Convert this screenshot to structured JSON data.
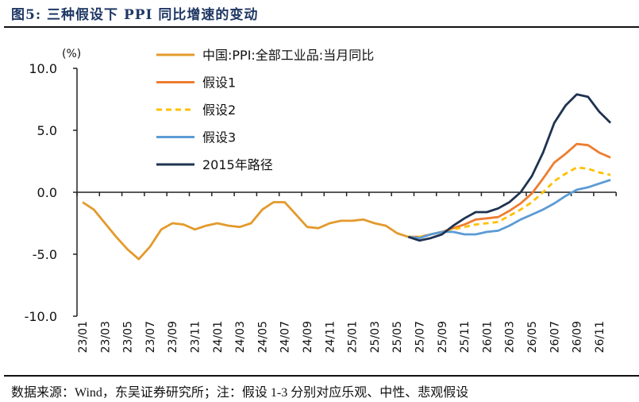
{
  "title": "图5:  三种假设下 PPI 同比增速的变动",
  "source": "数据来源：Wind，东吴证券研究所；注：假设 1-3 分别对应乐观、中性、悲观假设",
  "chart_data": {
    "type": "line",
    "title": "",
    "ylabel": "(%)",
    "xlabel": "",
    "ylim": [
      -10,
      10
    ],
    "yticks": [
      "10.0",
      "5.0",
      "0.0",
      "-5.0",
      "-10.0"
    ],
    "ytick_values": [
      10,
      5,
      0,
      -5,
      -10
    ],
    "grid": false,
    "legend_position": "top-center",
    "x": [
      "23/01",
      "23/02",
      "23/03",
      "23/04",
      "23/05",
      "23/06",
      "23/07",
      "23/08",
      "23/09",
      "23/10",
      "23/11",
      "23/12",
      "24/01",
      "24/02",
      "24/03",
      "24/04",
      "24/05",
      "24/06",
      "24/07",
      "24/08",
      "24/09",
      "24/10",
      "24/11",
      "24/12",
      "25/01",
      "25/02",
      "25/03",
      "25/04",
      "25/05",
      "25/06",
      "25/07",
      "25/08",
      "25/09",
      "25/10",
      "25/11",
      "25/12",
      "26/01",
      "26/02",
      "26/03",
      "26/04",
      "26/05",
      "26/06",
      "26/07",
      "26/08",
      "26/09",
      "26/10",
      "26/11",
      "26/12"
    ],
    "xtick_labels": [
      "23/01",
      "23/03",
      "23/05",
      "23/07",
      "23/09",
      "23/11",
      "24/01",
      "24/03",
      "24/05",
      "24/07",
      "24/09",
      "24/11",
      "25/01",
      "25/03",
      "25/05",
      "25/07",
      "25/09",
      "25/11",
      "26/01",
      "26/03",
      "26/05",
      "26/07",
      "26/09",
      "26/11"
    ],
    "series": [
      {
        "name": "中国:PPI:全部工业品:当月同比",
        "color": "#E39A2C",
        "dash": false,
        "values": [
          -0.8,
          -1.4,
          -2.5,
          -3.6,
          -4.6,
          -5.4,
          -4.4,
          -3.0,
          -2.5,
          -2.6,
          -3.0,
          -2.7,
          -2.5,
          -2.7,
          -2.8,
          -2.5,
          -1.4,
          -0.8,
          -0.8,
          -1.8,
          -2.8,
          -2.9,
          -2.5,
          -2.3,
          -2.3,
          -2.2,
          -2.5,
          -2.7,
          -3.3,
          -3.6,
          null,
          null,
          null,
          null,
          null,
          null,
          null,
          null,
          null,
          null,
          null,
          null,
          null,
          null,
          null,
          null,
          null,
          null
        ]
      },
      {
        "name": "假设1",
        "color": "#ED7D31",
        "dash": false,
        "values": [
          null,
          null,
          null,
          null,
          null,
          null,
          null,
          null,
          null,
          null,
          null,
          null,
          null,
          null,
          null,
          null,
          null,
          null,
          null,
          null,
          null,
          null,
          null,
          null,
          null,
          null,
          null,
          null,
          null,
          -3.6,
          -3.6,
          -3.4,
          -3.2,
          -2.9,
          -2.6,
          -2.2,
          -2.1,
          -2.0,
          -1.5,
          -0.9,
          -0.1,
          1.1,
          2.4,
          3.1,
          3.9,
          3.8,
          3.2,
          2.8
        ]
      },
      {
        "name": "假设2",
        "color": "#FFC000",
        "dash": true,
        "values": [
          null,
          null,
          null,
          null,
          null,
          null,
          null,
          null,
          null,
          null,
          null,
          null,
          null,
          null,
          null,
          null,
          null,
          null,
          null,
          null,
          null,
          null,
          null,
          null,
          null,
          null,
          null,
          null,
          null,
          -3.6,
          -3.6,
          -3.4,
          -3.2,
          -3.0,
          -2.8,
          -2.6,
          -2.5,
          -2.4,
          -1.9,
          -1.4,
          -0.8,
          0.0,
          0.9,
          1.5,
          2.0,
          1.9,
          1.6,
          1.4
        ]
      },
      {
        "name": "假设3",
        "color": "#5B9BD5",
        "dash": false,
        "values": [
          null,
          null,
          null,
          null,
          null,
          null,
          null,
          null,
          null,
          null,
          null,
          null,
          null,
          null,
          null,
          null,
          null,
          null,
          null,
          null,
          null,
          null,
          null,
          null,
          null,
          null,
          null,
          null,
          null,
          -3.6,
          -3.7,
          -3.4,
          -3.2,
          -3.2,
          -3.4,
          -3.4,
          -3.2,
          -3.1,
          -2.7,
          -2.2,
          -1.8,
          -1.4,
          -0.9,
          -0.3,
          0.2,
          0.4,
          0.7,
          1.0
        ]
      },
      {
        "name": "2015年路径",
        "color": "#1F3250",
        "dash": false,
        "values": [
          null,
          null,
          null,
          null,
          null,
          null,
          null,
          null,
          null,
          null,
          null,
          null,
          null,
          null,
          null,
          null,
          null,
          null,
          null,
          null,
          null,
          null,
          null,
          null,
          null,
          null,
          null,
          null,
          null,
          -3.6,
          -3.9,
          -3.7,
          -3.4,
          -2.7,
          -2.1,
          -1.6,
          -1.6,
          -1.3,
          -0.8,
          0.0,
          1.3,
          3.2,
          5.6,
          7.0,
          7.9,
          7.7,
          6.5,
          5.6
        ]
      }
    ]
  }
}
